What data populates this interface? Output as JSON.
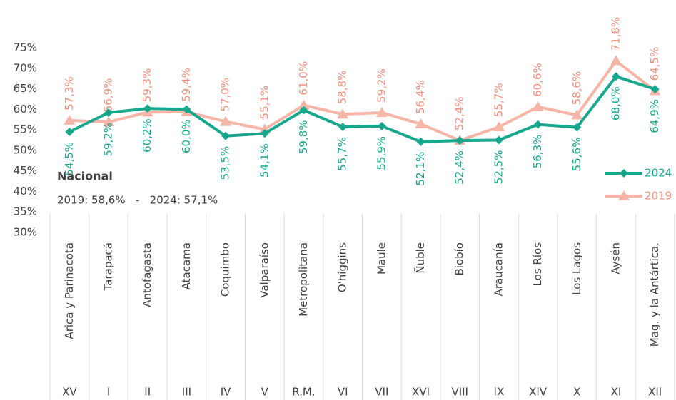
{
  "chart_data": {
    "type": "line",
    "categories": [
      "Arica y Parinacota",
      "Tarapacá",
      "Antofagasta",
      "Atacama",
      "Coquimbo",
      "Valparaíso",
      "Metropolitana",
      "O'higgins",
      "Maule",
      "Ñuble",
      "Biobío",
      "Araucanía",
      "Los Ríos",
      "Los Lagos",
      "Aysén",
      "Mag. y la Antártica."
    ],
    "category_codes": [
      "XV",
      "I",
      "II",
      "III",
      "IV",
      "V",
      "R.M.",
      "VI",
      "VII",
      "XVI",
      "VIII",
      "IX",
      "XIV",
      "X",
      "XI",
      "XII"
    ],
    "series": [
      {
        "name": "2024",
        "color": "#17a78c",
        "label_color": "#17a78c",
        "marker": "diamond",
        "values": [
          54.5,
          59.2,
          60.2,
          60.0,
          53.5,
          54.1,
          59.8,
          55.7,
          55.9,
          52.1,
          52.4,
          52.5,
          56.3,
          55.6,
          68.0,
          64.9
        ],
        "value_labels": [
          "54,5%",
          "59,2%",
          "60,2%",
          "60,0%",
          "53,5%",
          "54,1%",
          "59,8%",
          "55,7%",
          "55,9%",
          "52,1%",
          "52,4%",
          "52,5%",
          "56,3%",
          "55,6%",
          "68,0%",
          "64,9%"
        ]
      },
      {
        "name": "2019",
        "color": "#f5b5a7",
        "label_color": "#f08f7b",
        "marker": "triangle",
        "values": [
          57.3,
          56.9,
          59.3,
          59.4,
          57.0,
          55.1,
          61.0,
          58.8,
          59.2,
          56.4,
          52.4,
          55.7,
          60.6,
          58.6,
          71.8,
          64.5
        ],
        "value_labels": [
          "57,3%",
          "56,9%",
          "59,3%",
          "59,4%",
          "57,0%",
          "55,1%",
          "61,0%",
          "58,8%",
          "59,2%",
          "56,4%",
          "52,4%",
          "55,7%",
          "60,6%",
          "58,6%",
          "71,8%",
          "64,5%"
        ]
      }
    ],
    "ylim": [
      30,
      75
    ],
    "yticks": [
      {
        "value": 30,
        "label": "30%"
      },
      {
        "value": 35,
        "label": "35%"
      },
      {
        "value": 40,
        "label": "40%"
      },
      {
        "value": 45,
        "label": "45%"
      },
      {
        "value": 50,
        "label": "50%"
      },
      {
        "value": 55,
        "label": "55%"
      },
      {
        "value": 60,
        "label": "60%"
      },
      {
        "value": 65,
        "label": "65%"
      },
      {
        "value": 70,
        "label": "70%"
      },
      {
        "value": 75,
        "label": "75%"
      }
    ],
    "grid": false,
    "legend": "right",
    "annotations": [
      "Nacional",
      "2019: 58,6%   -   2024: 57,1%"
    ]
  }
}
